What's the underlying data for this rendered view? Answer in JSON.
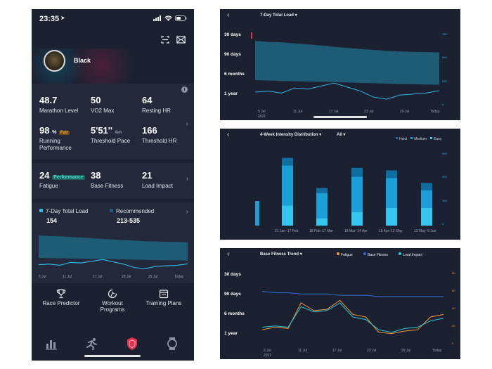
{
  "status": {
    "time": "23:35"
  },
  "profile": {
    "name": "Black"
  },
  "metrics_row1": [
    {
      "value": "48.7",
      "label": "Marathon Level"
    },
    {
      "value": "50",
      "label": "VO2 Max"
    },
    {
      "value": "64",
      "label": "Resting HR"
    }
  ],
  "metrics_row2": [
    {
      "value": "98",
      "unit": "%",
      "tag": "Fair",
      "label1": "Running",
      "label2": "Performance"
    },
    {
      "value": "5'51''",
      "unit": "/km",
      "label1": "Threshold Pace"
    },
    {
      "value": "166",
      "label1": "Threshold HR"
    }
  ],
  "metrics_row3": [
    {
      "value": "24",
      "tag": "Performance",
      "label": "Fatigue"
    },
    {
      "value": "38",
      "label": "Base Fitness"
    },
    {
      "value": "21",
      "label": "Load Impact"
    }
  ],
  "load_card": {
    "legend1": "7-Day Total Load",
    "value1": "154",
    "legend2": "Recommended",
    "value2": "213-535",
    "x_ticks": [
      "5 Jul",
      "11 Jul",
      "17 Jul",
      "23 Jul",
      "29 Jul",
      "Today"
    ]
  },
  "actions": [
    {
      "label1": "Race Predictor",
      "label2": "",
      "icon": "trophy-icon"
    },
    {
      "label1": "Workout",
      "label2": "Programs",
      "icon": "running-program-icon"
    },
    {
      "label1": "Training Plans",
      "label2": "",
      "icon": "calendar-icon"
    }
  ],
  "tabbar": [
    "stats-icon",
    "runner-icon",
    "shield-icon",
    "watch-icon"
  ],
  "panel1": {
    "title": "7-Day Total Load",
    "y_labels": [
      "30 days",
      "90 days",
      "6 months",
      "1 year"
    ],
    "x_ticks": [
      "5 Jul",
      "11 Jul",
      "17 Jul",
      "23 Jul",
      "29 Jul",
      "Today"
    ],
    "year": "2021",
    "right_ticks": [
      "750",
      "500",
      "250",
      "0"
    ]
  },
  "panel2": {
    "title": "4-Week Intensity Distribution",
    "filter": "All",
    "legend": [
      "Hard",
      "Medium",
      "Easy"
    ],
    "x_ticks": [
      "21 Jan–17 Feb",
      "18 Feb–17 Mar",
      "18 Mar–14 Apr",
      "15 Apr–12 May",
      "13 May–9 Jun"
    ],
    "right_ticks": [
      "300",
      "200",
      "100",
      "0"
    ]
  },
  "panel3": {
    "title": "Base Fitness Trend",
    "legend": [
      "Fatigue",
      "Base Fitness",
      "Load Impact"
    ],
    "y_labels": [
      "30 days",
      "90 days",
      "6 months",
      "1 year"
    ],
    "x_ticks": [
      "5 Jul",
      "11 Jul",
      "17 Jul",
      "23 Jul",
      "29 Jul",
      "Today"
    ],
    "year": "2021",
    "right_ticks": [
      "80",
      "60",
      "40",
      "20",
      "0"
    ]
  },
  "chart_data": [
    {
      "type": "area",
      "name": "7-Day Total Load",
      "x": [
        "5 Jul",
        "7 Jul",
        "9 Jul",
        "11 Jul",
        "13 Jul",
        "15 Jul",
        "17 Jul",
        "19 Jul",
        "21 Jul",
        "23 Jul",
        "25 Jul",
        "27 Jul",
        "29 Jul",
        "31 Jul",
        "Today"
      ],
      "series": [
        {
          "name": "7-Day Total Load",
          "values": [
            140,
            150,
            130,
            180,
            170,
            200,
            230,
            190,
            150,
            90,
            70,
            110,
            120,
            130,
            154
          ]
        },
        {
          "name": "Recommended upper",
          "values": [
            650,
            640,
            635,
            625,
            615,
            605,
            590,
            580,
            570,
            560,
            550,
            545,
            540,
            538,
            535
          ]
        },
        {
          "name": "Recommended lower",
          "values": [
            260,
            255,
            250,
            248,
            245,
            242,
            240,
            236,
            232,
            228,
            224,
            220,
            218,
            215,
            213
          ]
        }
      ]
    },
    {
      "type": "bar",
      "name": "4-Week Intensity Distribution",
      "categories": [
        "21 Jan–17 Feb",
        "18 Feb–17 Mar",
        "18 Mar–14 Apr",
        "15 Apr–12 May",
        "13 May–9 Jun"
      ],
      "series": [
        {
          "name": "Easy",
          "values": [
            80,
            30,
            55,
            70,
            70
          ]
        },
        {
          "name": "Medium",
          "values": [
            160,
            100,
            140,
            120,
            70
          ]
        },
        {
          "name": "Hard",
          "values": [
            30,
            20,
            35,
            30,
            30
          ]
        }
      ]
    },
    {
      "type": "line",
      "name": "Base Fitness Trend",
      "x": [
        "5 Jul",
        "7 Jul",
        "9 Jul",
        "11 Jul",
        "13 Jul",
        "15 Jul",
        "17 Jul",
        "19 Jul",
        "21 Jul",
        "23 Jul",
        "25 Jul",
        "27 Jul",
        "29 Jul",
        "31 Jul",
        "Today"
      ],
      "series": [
        {
          "name": "Fatigue",
          "values": [
            12,
            14,
            13,
            33,
            27,
            28,
            35,
            24,
            22,
            10,
            9,
            11,
            12,
            22,
            24
          ]
        },
        {
          "name": "Base Fitness",
          "values": [
            42,
            41,
            41,
            40,
            40,
            40,
            39,
            39,
            39,
            38,
            38,
            38,
            38,
            38,
            38
          ]
        },
        {
          "name": "Load Impact",
          "values": [
            14,
            15,
            14,
            30,
            26,
            27,
            33,
            22,
            20,
            12,
            10,
            13,
            14,
            19,
            21
          ]
        }
      ]
    }
  ]
}
